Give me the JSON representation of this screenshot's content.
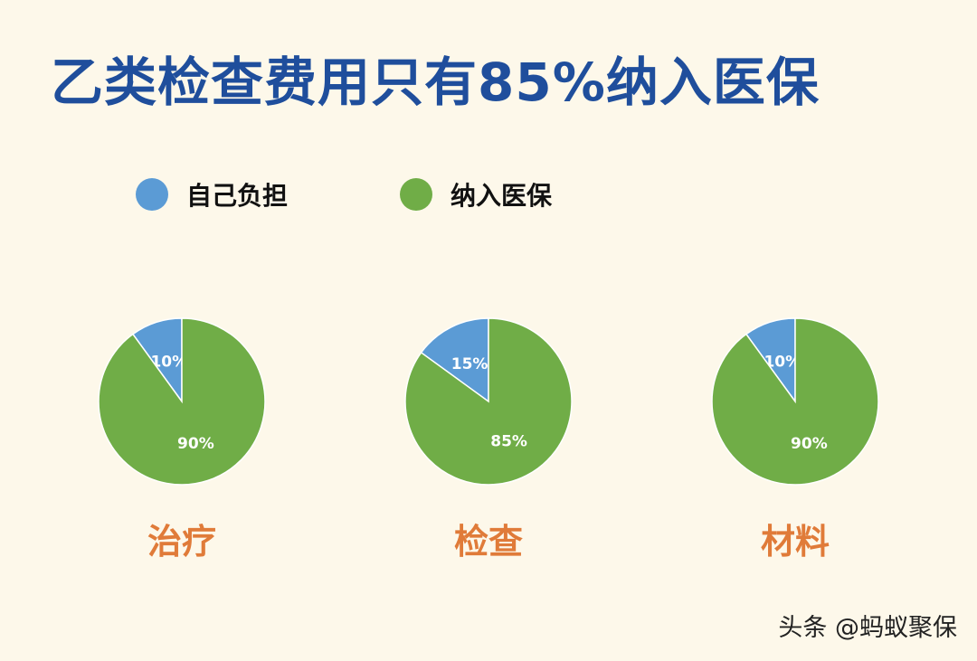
{
  "title": "乙类检查费用只有85%纳入医保",
  "legend": [
    {
      "label": "自己负担",
      "color": "#5b9bd5"
    },
    {
      "label": "纳入医保",
      "color": "#70ad47"
    }
  ],
  "chart_data": [
    {
      "type": "pie",
      "category": "治疗",
      "slices": [
        {
          "name": "自己负担",
          "value": 10,
          "label": "10%",
          "color": "#5b9bd5"
        },
        {
          "name": "纳入医保",
          "value": 90,
          "label": "90%",
          "color": "#70ad47"
        }
      ]
    },
    {
      "type": "pie",
      "category": "检查",
      "slices": [
        {
          "name": "自己负担",
          "value": 15,
          "label": "15%",
          "color": "#5b9bd5"
        },
        {
          "name": "纳入医保",
          "value": 85,
          "label": "85%",
          "color": "#70ad47"
        }
      ]
    },
    {
      "type": "pie",
      "category": "材料",
      "slices": [
        {
          "name": "自己负担",
          "value": 10,
          "label": "10%",
          "color": "#5b9bd5"
        },
        {
          "name": "纳入医保",
          "value": 90,
          "label": "90%",
          "color": "#70ad47"
        }
      ]
    }
  ],
  "watermark": "头条 @蚂蚁聚保"
}
